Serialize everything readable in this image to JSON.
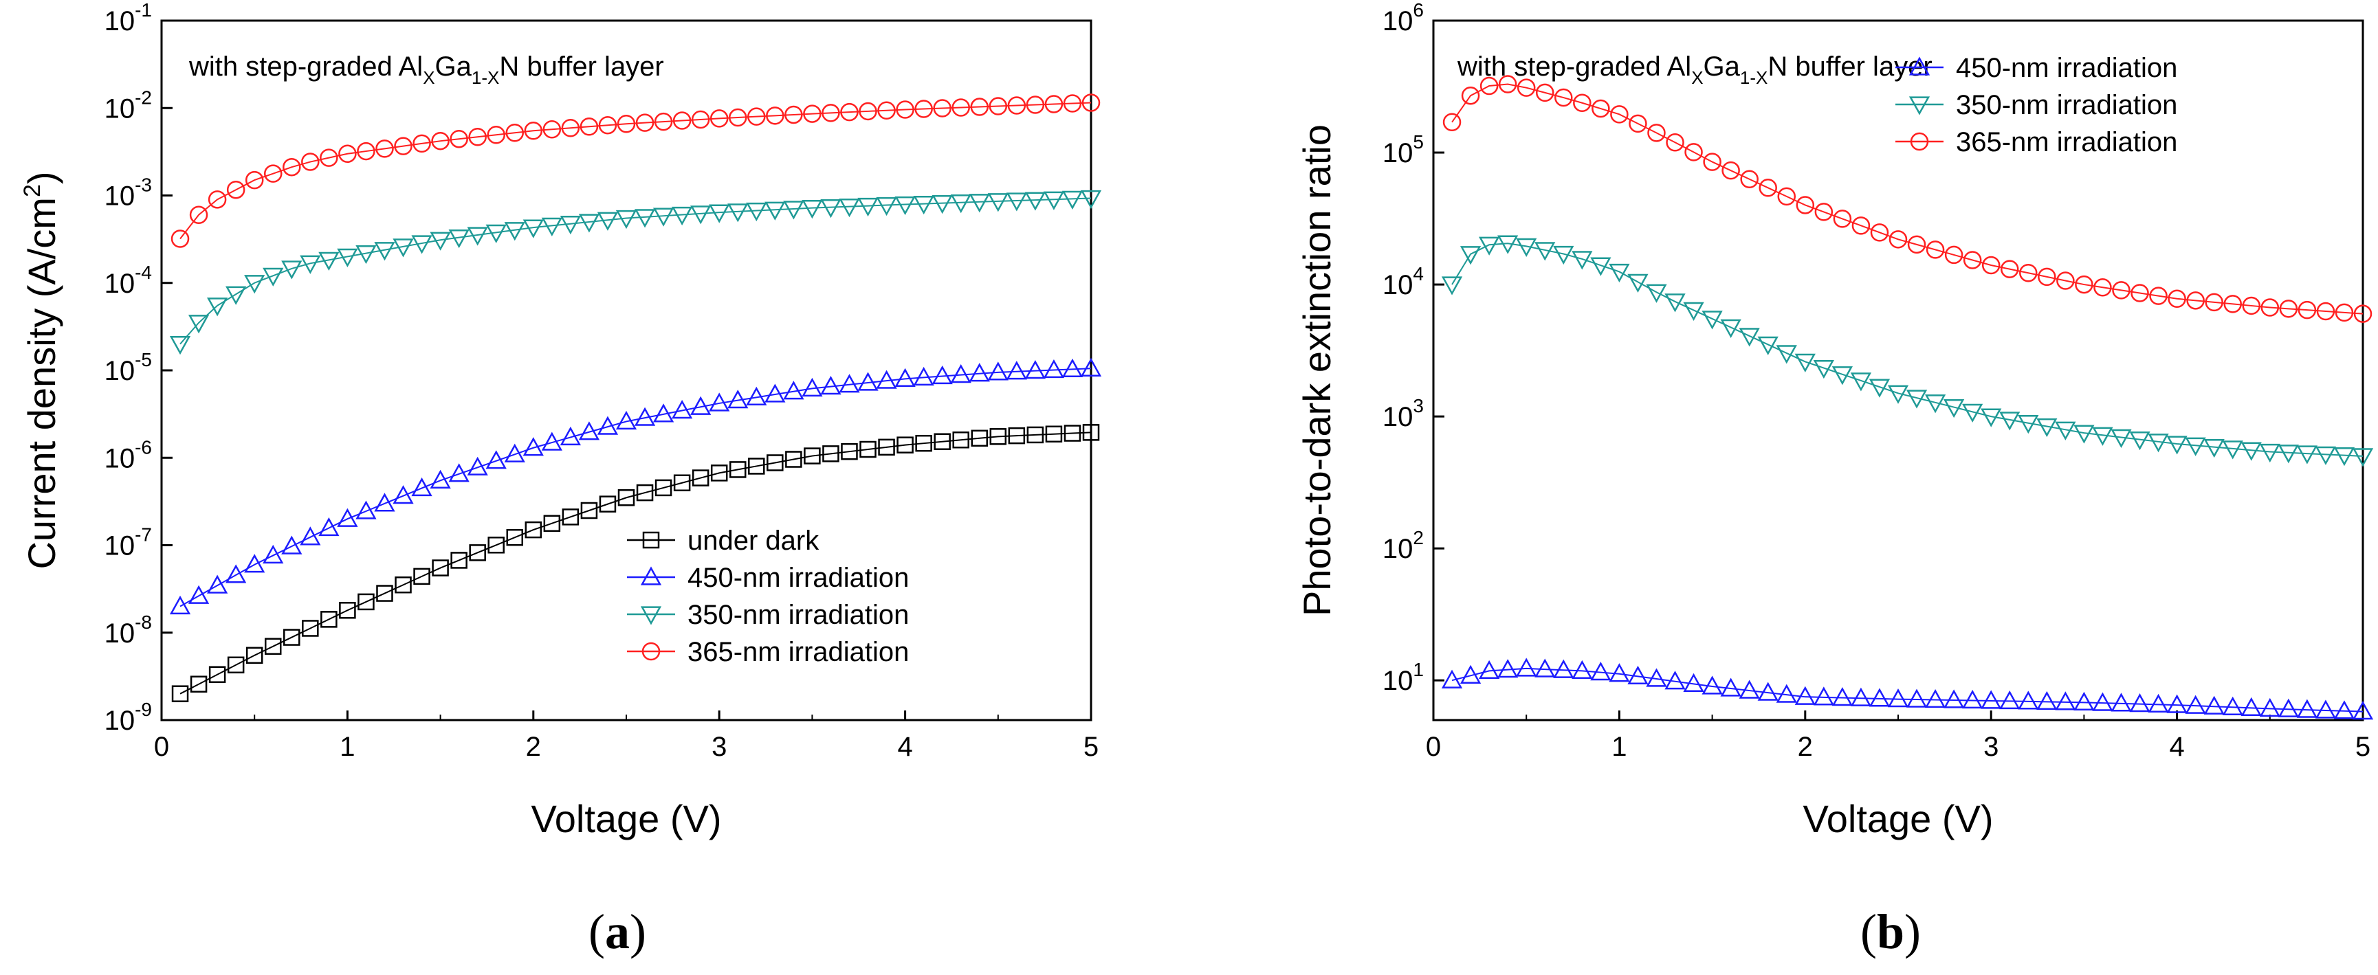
{
  "colors": {
    "under_dark": "#000000",
    "irr_450": "#1c1cff",
    "irr_350": "#1f9a96",
    "irr_365": "#ff2020"
  },
  "chart_data": [
    {
      "panel_label": "(a)",
      "panel_label_letter": "a",
      "type": "scatter-line",
      "yscale": "log",
      "xlim": [
        0,
        5
      ],
      "ylim": [
        1e-09,
        0.1
      ],
      "xlabel": "Voltage (V)",
      "ylabel": "Current density (A/cm²)",
      "ylabel_parts": {
        "main": "Current density (A/cm",
        "sup": "2",
        "close": ")"
      },
      "xticks": [
        "0",
        "1",
        "2",
        "3",
        "4",
        "5"
      ],
      "yticks": [
        {
          "base": "10",
          "exp": "-9"
        },
        {
          "base": "10",
          "exp": "-8"
        },
        {
          "base": "10",
          "exp": "-7"
        },
        {
          "base": "10",
          "exp": "-6"
        },
        {
          "base": "10",
          "exp": "-5"
        },
        {
          "base": "10",
          "exp": "-4"
        },
        {
          "base": "10",
          "exp": "-3"
        },
        {
          "base": "10",
          "exp": "-2"
        },
        {
          "base": "10",
          "exp": "-1"
        }
      ],
      "annotation": {
        "pre": "with step-graded Al",
        "sub1": "X",
        "mid": "Ga",
        "sub2": "1-X",
        "post": "N buffer layer"
      },
      "series": [
        {
          "name": "under dark",
          "marker": "square",
          "color_key": "under_dark",
          "x": [
            0.1,
            0.5,
            1.0,
            1.5,
            2.0,
            2.5,
            3.0,
            3.5,
            4.0,
            4.5,
            5.0
          ],
          "y": [
            2e-09,
            5.5e-09,
            1.8e-08,
            5.5e-08,
            1.5e-07,
            3.5e-07,
            6.7e-07,
            1.05e-06,
            1.4e-06,
            1.75e-06,
            1.95e-06
          ]
        },
        {
          "name": "450-nm irradiation",
          "marker": "triangle-up",
          "color_key": "irr_450",
          "x": [
            0.1,
            0.5,
            1.0,
            1.5,
            2.0,
            2.5,
            3.0,
            3.5,
            4.0,
            4.5,
            5.0
          ],
          "y": [
            2e-08,
            6e-08,
            2e-07,
            5.5e-07,
            1.3e-06,
            2.6e-06,
            4.2e-06,
            6.2e-06,
            8e-06,
            9.5e-06,
            1.05e-05
          ]
        },
        {
          "name": "350-nm irradiation",
          "marker": "triangle-down",
          "color_key": "irr_350",
          "x": [
            0.1,
            0.2,
            0.3,
            0.5,
            0.75,
            1.0,
            1.5,
            2.0,
            2.5,
            3.0,
            3.5,
            4.0,
            4.5,
            5.0
          ],
          "y": [
            2e-05,
            3.5e-05,
            5.5e-05,
            0.0001,
            0.00016,
            0.0002,
            0.00031,
            0.00043,
            0.00055,
            0.00064,
            0.00072,
            0.00079,
            0.00086,
            0.00093
          ]
        },
        {
          "name": "365-nm irradiation",
          "marker": "circle",
          "color_key": "irr_365",
          "x": [
            0.1,
            0.2,
            0.3,
            0.5,
            0.75,
            1.0,
            1.5,
            2.0,
            2.5,
            3.0,
            3.5,
            4.0,
            4.5,
            5.0
          ],
          "y": [
            0.00032,
            0.0006,
            0.0009,
            0.0015,
            0.0023,
            0.003,
            0.0042,
            0.0055,
            0.0066,
            0.0076,
            0.0086,
            0.0096,
            0.0105,
            0.0115
          ]
        }
      ],
      "legend_order": [
        0,
        1,
        2,
        3
      ],
      "legend": "bottom-right"
    },
    {
      "panel_label": "(b)",
      "panel_label_letter": "b",
      "type": "scatter-line",
      "yscale": "log",
      "xlim": [
        0,
        5
      ],
      "ylim": [
        5,
        1000000
      ],
      "xlabel": "Voltage (V)",
      "ylabel": "Photo-to-dark extinction ratio",
      "xticks": [
        "0",
        "1",
        "2",
        "3",
        "4",
        "5"
      ],
      "yticks": [
        {
          "base": "10",
          "exp": "1"
        },
        {
          "base": "10",
          "exp": "2"
        },
        {
          "base": "10",
          "exp": "3"
        },
        {
          "base": "10",
          "exp": "4"
        },
        {
          "base": "10",
          "exp": "5"
        },
        {
          "base": "10",
          "exp": "6"
        }
      ],
      "annotation": {
        "pre": "with step-graded Al",
        "sub1": "X",
        "mid": "Ga",
        "sub2": "1-X",
        "post": "N buffer layer"
      },
      "series": [
        {
          "name": "450-nm irradiation",
          "marker": "triangle-up",
          "color_key": "irr_450",
          "x": [
            0.1,
            0.3,
            0.5,
            0.8,
            1.0,
            1.5,
            2.0,
            2.5,
            3.0,
            3.5,
            4.0,
            4.5,
            5.0
          ],
          "y": [
            10,
            11.8,
            12.3,
            11.8,
            11.2,
            9,
            7.5,
            7.2,
            7,
            6.8,
            6.5,
            6.1,
            5.8
          ]
        },
        {
          "name": "350-nm irradiation",
          "marker": "triangle-down",
          "color_key": "irr_350",
          "x": [
            0.1,
            0.2,
            0.3,
            0.4,
            0.5,
            0.75,
            1.0,
            1.25,
            1.5,
            2.0,
            2.5,
            3.0,
            3.5,
            4.0,
            4.5,
            5.0
          ],
          "y": [
            10000,
            17000,
            20000,
            20500,
            19500,
            16500,
            12500,
            8000,
            5500,
            2600,
            1500,
            1000,
            750,
            620,
            540,
            500
          ]
        },
        {
          "name": "365-nm irradiation",
          "marker": "circle",
          "color_key": "irr_365",
          "x": [
            0.1,
            0.2,
            0.3,
            0.4,
            0.5,
            0.75,
            1.0,
            1.25,
            1.5,
            2.0,
            2.5,
            3.0,
            3.5,
            4.0,
            4.5,
            5.0
          ],
          "y": [
            170000,
            270000,
            320000,
            330000,
            310000,
            250000,
            195000,
            130000,
            85000,
            40000,
            22000,
            14000,
            10000,
            7800,
            6700,
            6000
          ]
        }
      ],
      "legend_order": [
        0,
        1,
        2
      ],
      "legend": "top-right"
    }
  ]
}
